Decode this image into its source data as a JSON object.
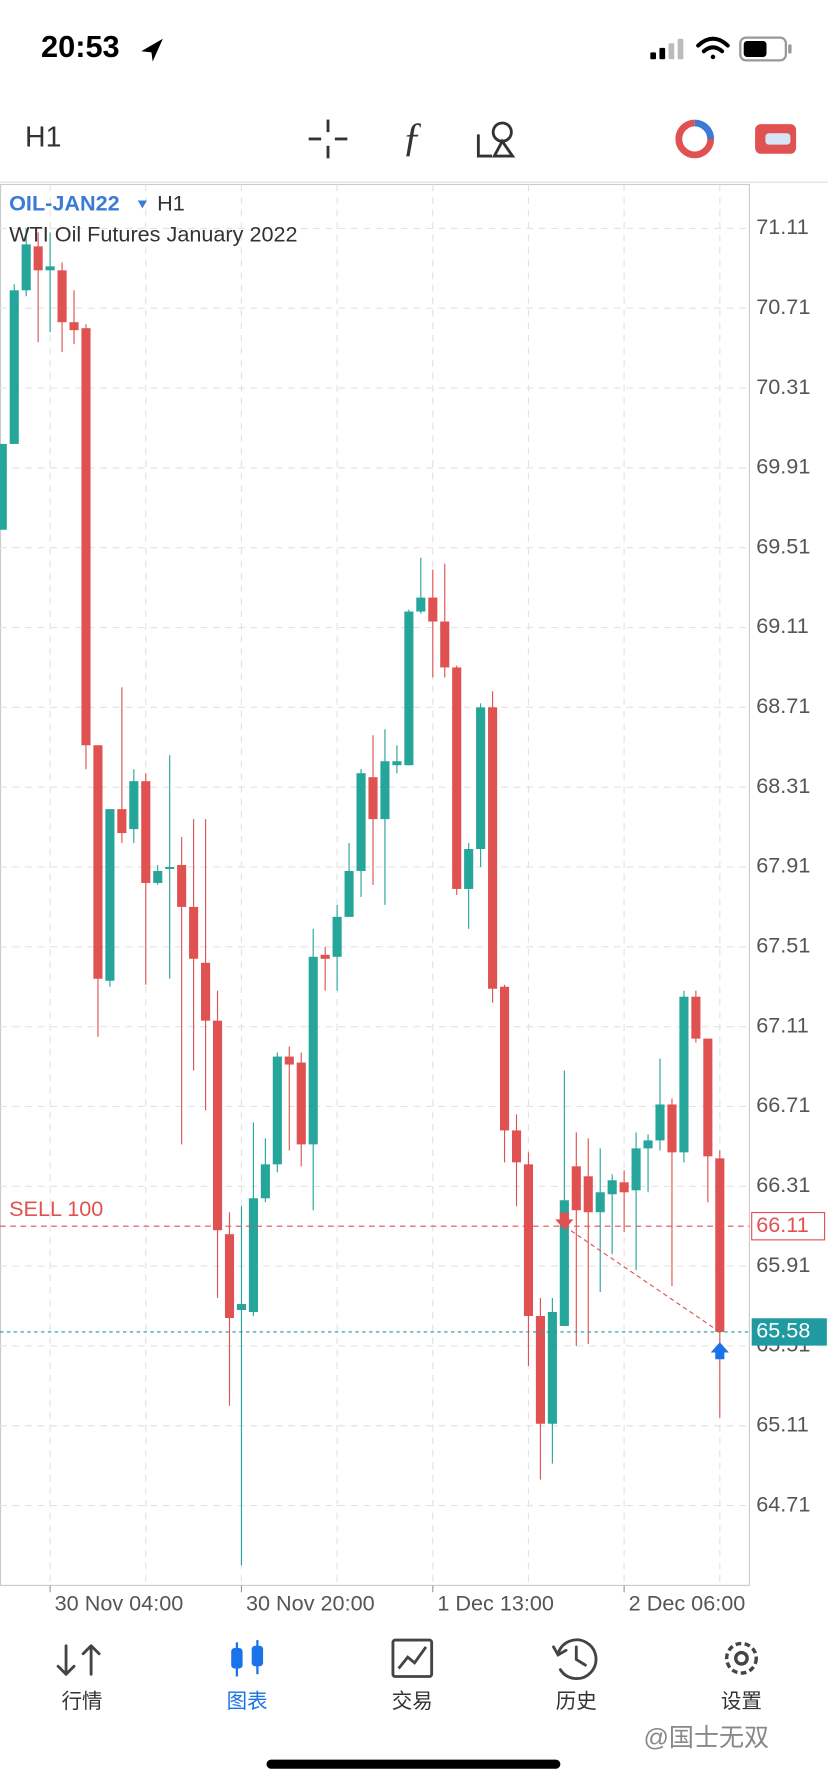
{
  "status_bar": {
    "time": "20:53"
  },
  "toolbar": {
    "timeframe": "H1"
  },
  "chart_data": {
    "type": "candlestick",
    "title": "OIL-JAN22",
    "timeframe": "H1",
    "subtitle": "WTI Oil Futures January 2022",
    "categories": [
      null,
      null,
      null,
      null,
      "30 Nov 04:00",
      null,
      null,
      null,
      null,
      null,
      null,
      null,
      null,
      null,
      null,
      null,
      null,
      null,
      null,
      null,
      "30 Nov 20:00",
      null,
      null,
      null,
      null,
      null,
      null,
      null,
      null,
      null,
      null,
      null,
      null,
      null,
      null,
      null,
      "1 Dec 13:00",
      null,
      null,
      null,
      null,
      null,
      null,
      null,
      null,
      null,
      null,
      null,
      null,
      null,
      null,
      null,
      "2 Dec 06:00",
      null,
      null,
      null,
      null,
      null,
      null,
      null,
      null
    ],
    "open": [
      69.6,
      70.03,
      70.8,
      71.02,
      70.9,
      70.9,
      70.64,
      70.61,
      68.52,
      67.34,
      68.2,
      68.1,
      68.34,
      67.83,
      67.9,
      67.92,
      67.71,
      67.43,
      67.14,
      66.07,
      65.69,
      65.68,
      66.25,
      66.42,
      66.96,
      66.93,
      66.52,
      67.47,
      67.46,
      67.66,
      67.89,
      68.36,
      68.15,
      68.42,
      68.42,
      69.19,
      69.26,
      69.14,
      68.91,
      67.8,
      68.0,
      68.71,
      67.31,
      66.59,
      66.42,
      65.66,
      65.12,
      65.61,
      66.41,
      66.36,
      66.18,
      66.27,
      66.33,
      66.29,
      66.5,
      66.54,
      66.72,
      66.48,
      67.26,
      67.05,
      66.45
    ],
    "high": [
      70.03,
      70.83,
      71.11,
      71.09,
      71.09,
      70.94,
      70.8,
      70.63,
      68.52,
      68.2,
      68.81,
      68.4,
      68.38,
      67.92,
      68.47,
      68.06,
      68.15,
      68.15,
      67.29,
      66.18,
      66.21,
      66.63,
      66.55,
      66.98,
      67.01,
      66.98,
      67.6,
      67.51,
      67.72,
      68.03,
      68.4,
      68.57,
      68.6,
      68.52,
      69.2,
      69.46,
      69.4,
      69.43,
      68.92,
      68.03,
      68.73,
      68.79,
      67.32,
      66.67,
      66.48,
      65.75,
      65.75,
      66.89,
      66.58,
      66.55,
      66.5,
      66.37,
      66.39,
      66.58,
      66.57,
      66.95,
      66.75,
      67.29,
      67.29,
      67.05,
      66.49
    ],
    "low": [
      69.6,
      70.03,
      70.77,
      70.54,
      70.59,
      70.49,
      70.53,
      68.4,
      67.06,
      67.31,
      68.03,
      68.03,
      67.32,
      67.82,
      67.35,
      66.52,
      66.89,
      66.69,
      65.75,
      65.21,
      64.41,
      65.66,
      66.23,
      66.38,
      66.49,
      66.41,
      66.19,
      67.29,
      67.29,
      67.66,
      67.76,
      67.82,
      67.72,
      68.38,
      68.42,
      69.18,
      68.86,
      68.86,
      67.77,
      67.6,
      67.91,
      67.23,
      66.43,
      66.21,
      65.41,
      64.84,
      64.92,
      65.61,
      65.51,
      65.52,
      65.78,
      65.97,
      66.08,
      65.89,
      66.28,
      66.49,
      65.81,
      66.43,
      67.03,
      66.23,
      65.15
    ],
    "close": [
      70.03,
      70.8,
      71.03,
      70.9,
      70.92,
      70.64,
      70.6,
      68.52,
      67.35,
      68.2,
      68.08,
      68.34,
      67.83,
      67.89,
      67.91,
      67.71,
      67.45,
      67.14,
      66.09,
      65.65,
      65.72,
      66.25,
      66.42,
      66.96,
      66.92,
      66.52,
      67.46,
      67.45,
      67.66,
      67.89,
      68.38,
      68.15,
      68.44,
      68.44,
      69.19,
      69.26,
      69.14,
      68.91,
      67.8,
      68.0,
      68.71,
      67.3,
      66.59,
      66.43,
      65.66,
      65.12,
      65.68,
      66.24,
      66.19,
      66.18,
      66.28,
      66.34,
      66.28,
      66.5,
      66.54,
      66.72,
      66.48,
      67.26,
      67.05,
      66.46,
      65.58
    ],
    "up_color": "#26a69a",
    "down_color": "#e05252",
    "ylim": [
      64.31,
      71.33
    ],
    "yticks": [
      71.11,
      70.71,
      70.31,
      69.91,
      69.51,
      69.11,
      68.71,
      68.31,
      67.91,
      67.51,
      67.11,
      66.71,
      66.31,
      65.91,
      65.51,
      65.11,
      64.71
    ],
    "grid": true,
    "order_line": {
      "label": "SELL 100",
      "value": 66.11,
      "color": "#e05252"
    },
    "bid_line": {
      "value": 65.58,
      "color": "#1f9aa0"
    }
  },
  "tab_bar": {
    "tabs": [
      "行情",
      "图表",
      "交易",
      "历史",
      "设置"
    ],
    "active": 1
  },
  "watermark": "@国士无双"
}
